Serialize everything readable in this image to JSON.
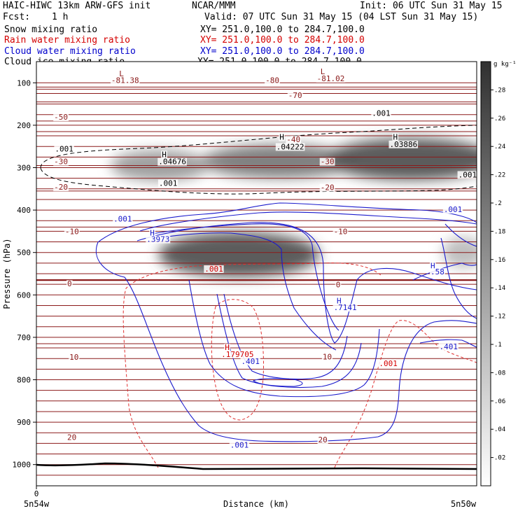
{
  "header": {
    "model": "HAIC-HIWC 13km ARW-GFS init",
    "center": "NCAR/MMM",
    "init": "Init: 06 UTC Sun 31 May 15",
    "fcst_label": "Fcst:",
    "fcst_value": "1 h",
    "valid": "Valid: 07 UTC Sun 31 May 15 (04 LST Sun 31 May 15)"
  },
  "fields": [
    {
      "name": "Snow mixing ratio",
      "xy": "XY= 251.0,100.0 to 284.7,100.0",
      "color": "#000000"
    },
    {
      "name": "Rain water mixing ratio",
      "xy": "XY= 251.0,100.0 to 284.7,100.0",
      "color": "#d40000"
    },
    {
      "name": "Cloud water mixing ratio",
      "xy": "XY= 251.0,100.0 to 284.7,100.0",
      "color": "#0000cc"
    },
    {
      "name": "Cloud ice mixing ratio",
      "xy": "XY= 251.0,100.0 to 284.7,100.0",
      "color": "#000000"
    }
  ],
  "colors": {
    "temperature": "#8b1a1a",
    "rain": "#e03030",
    "cloud_water": "#1a1acc",
    "snow": "#000000",
    "terrain": "#000000"
  },
  "chart_data": {
    "type": "heatmap",
    "xlabel": "Distance (km)",
    "ylabel": "Pressure (hPa)",
    "x_tick_labels": [
      "0"
    ],
    "x_end_labels": [
      "5n54w",
      "5n50w"
    ],
    "y_ticks": [
      100,
      200,
      300,
      400,
      500,
      600,
      700,
      800,
      900,
      1000
    ],
    "ylim": [
      1050,
      50
    ],
    "colorbar": {
      "unit": "g kg⁻¹",
      "ticks": [
        ".02",
        ".04",
        ".06",
        ".08",
        ".1",
        ".12",
        ".14",
        ".16",
        ".18",
        ".2",
        ".22",
        ".24",
        ".26",
        ".28"
      ],
      "min": 0,
      "max": 0.3
    },
    "cloud_ice_maxima": [
      {
        "x": 0.28,
        "p": 295,
        "value": 0.15
      },
      {
        "x": 0.55,
        "p": 285,
        "value": 0.2
      },
      {
        "x": 0.85,
        "p": 280,
        "value": 0.26
      },
      {
        "x": 0.46,
        "p": 505,
        "value": 0.26
      },
      {
        "x": 0.97,
        "p": 500,
        "value": 0.1
      }
    ],
    "temperature_contours": [
      {
        "label": "-81.38",
        "p": 110
      },
      {
        "label": "-80",
        "p": 115
      },
      {
        "label": "-70",
        "p": 145
      },
      {
        "label": "-50",
        "p": 190
      },
      {
        "label": "-40",
        "p": 215
      },
      {
        "label": "-30",
        "p": 295
      },
      {
        "label": "-20",
        "p": 355
      },
      {
        "label": "-10",
        "p": 440
      },
      {
        "label": "0",
        "p": 565
      },
      {
        "label": "10",
        "p": 715
      },
      {
        "label": "20",
        "p": 900
      }
    ],
    "labels": [
      {
        "text": "L",
        "x": 0.188,
        "p": 85,
        "color": "#8b1a1a"
      },
      {
        "text": "-81.38",
        "x": 0.17,
        "p": 100,
        "color": "#8b1a1a"
      },
      {
        "text": "-80",
        "x": 0.52,
        "p": 100,
        "color": "#8b1a1a"
      },
      {
        "text": "L",
        "x": 0.645,
        "p": 80,
        "color": "#8b1a1a"
      },
      {
        "text": "-81.02",
        "x": 0.637,
        "p": 96,
        "color": "#8b1a1a"
      },
      {
        "text": "-70",
        "x": 0.572,
        "p": 136,
        "color": "#8b1a1a"
      },
      {
        "text": ".001",
        "x": 0.762,
        "p": 178,
        "color": "#000000"
      },
      {
        "text": "-50",
        "x": 0.04,
        "p": 187,
        "color": "#8b1a1a"
      },
      {
        "text": "H",
        "x": 0.552,
        "p": 234,
        "color": "#000000"
      },
      {
        "text": "-40",
        "x": 0.568,
        "p": 240,
        "color": "#8b1a1a"
      },
      {
        "text": ".04222",
        "x": 0.545,
        "p": 257,
        "color": "#000000"
      },
      {
        "text": "H",
        "x": 0.81,
        "p": 234,
        "color": "#000000"
      },
      {
        "text": ".03886",
        "x": 0.802,
        "p": 251,
        "color": "#000000"
      },
      {
        "text": ".001",
        "x": 0.042,
        "p": 262,
        "color": "#000000"
      },
      {
        "text": "H",
        "x": 0.285,
        "p": 275,
        "color": "#000000"
      },
      {
        "text": ".04676",
        "x": 0.277,
        "p": 292,
        "color": "#000000"
      },
      {
        "text": "-30",
        "x": 0.04,
        "p": 292,
        "color": "#8b1a1a"
      },
      {
        "text": "-30",
        "x": 0.645,
        "p": 292,
        "color": "#8b1a1a"
      },
      {
        "text": ".001",
        "x": 0.278,
        "p": 343,
        "color": "#000000"
      },
      {
        "text": ".001",
        "x": 0.958,
        "p": 323,
        "color": "#000000"
      },
      {
        "text": "-20",
        "x": 0.04,
        "p": 352,
        "color": "#8b1a1a"
      },
      {
        "text": "-20",
        "x": 0.645,
        "p": 353,
        "color": "#8b1a1a"
      },
      {
        "text": ".001",
        "x": 0.925,
        "p": 405,
        "color": "#1a1acc"
      },
      {
        "text": ".001",
        "x": 0.175,
        "p": 427,
        "color": "#1a1acc"
      },
      {
        "text": "-10",
        "x": 0.065,
        "p": 457,
        "color": "#8b1a1a"
      },
      {
        "text": "-10",
        "x": 0.675,
        "p": 457,
        "color": "#8b1a1a"
      },
      {
        "text": "H",
        "x": 0.258,
        "p": 460,
        "color": "#1a1acc"
      },
      {
        "text": ".3973",
        "x": 0.25,
        "p": 475,
        "color": "#1a1acc"
      },
      {
        "text": ".001",
        "x": 0.382,
        "p": 545,
        "color": "#d40000"
      },
      {
        "text": "H",
        "x": 0.895,
        "p": 538,
        "color": "#1a1acc"
      },
      {
        "text": ".58",
        "x": 0.895,
        "p": 552,
        "color": "#1a1acc"
      },
      {
        "text": "0",
        "x": 0.07,
        "p": 580,
        "color": "#8b1a1a"
      },
      {
        "text": "0",
        "x": 0.68,
        "p": 582,
        "color": "#8b1a1a"
      },
      {
        "text": "H",
        "x": 0.682,
        "p": 620,
        "color": "#1a1acc"
      },
      {
        "text": ".7141",
        "x": 0.675,
        "p": 636,
        "color": "#1a1acc"
      },
      {
        "text": "H",
        "x": 0.428,
        "p": 730,
        "color": "#d40000"
      },
      {
        "text": ".179705",
        "x": 0.42,
        "p": 746,
        "color": "#d40000"
      },
      {
        "text": "10",
        "x": 0.075,
        "p": 753,
        "color": "#8b1a1a"
      },
      {
        "text": "10",
        "x": 0.65,
        "p": 752,
        "color": "#8b1a1a"
      },
      {
        "text": ".401",
        "x": 0.465,
        "p": 763,
        "color": "#1a1acc"
      },
      {
        "text": ".401",
        "x": 0.915,
        "p": 728,
        "color": "#1a1acc"
      },
      {
        "text": ".001",
        "x": 0.778,
        "p": 768,
        "color": "#d40000"
      },
      {
        "text": "20",
        "x": 0.07,
        "p": 942,
        "color": "#8b1a1a"
      },
      {
        "text": "20",
        "x": 0.64,
        "p": 948,
        "color": "#8b1a1a"
      },
      {
        "text": ".001",
        "x": 0.44,
        "p": 960,
        "color": "#1a1acc"
      }
    ]
  }
}
